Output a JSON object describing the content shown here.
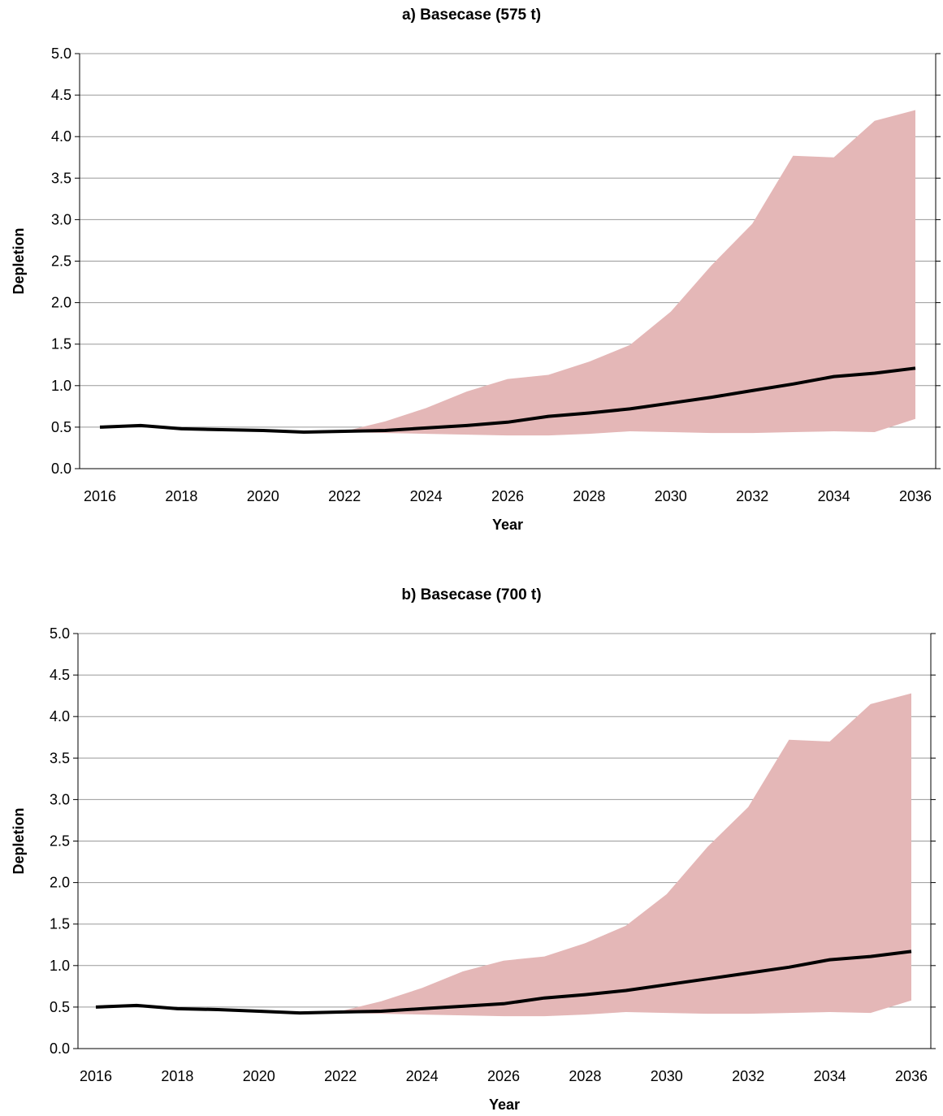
{
  "colors": {
    "band": "#e4b7b7",
    "median": "#000000",
    "grid": "#999999",
    "axis": "#000000"
  },
  "chart_data": [
    {
      "type": "area",
      "title": "a) Basecase (575 t)",
      "xlabel": "Year",
      "ylabel": "Depletion",
      "xlim": [
        2016,
        2036
      ],
      "ylim": [
        0,
        5.0
      ],
      "xticks": [
        2016,
        2018,
        2020,
        2022,
        2024,
        2026,
        2028,
        2030,
        2032,
        2034,
        2036
      ],
      "yticks": [
        "0.0",
        "0.5",
        "1.0",
        "1.5",
        "2.0",
        "2.5",
        "3.0",
        "3.5",
        "4.0",
        "4.5",
        "5.0"
      ],
      "grid": true,
      "legend": "none",
      "x": [
        2016,
        2017,
        2018,
        2019,
        2020,
        2021,
        2022,
        2023,
        2024,
        2025,
        2026,
        2027,
        2028,
        2029,
        2030,
        2031,
        2032,
        2033,
        2034,
        2035,
        2036
      ],
      "series": [
        {
          "role": "lower",
          "values": [
            0.5,
            0.51,
            0.48,
            0.46,
            0.45,
            0.44,
            0.44,
            0.43,
            0.42,
            0.41,
            0.4,
            0.4,
            0.42,
            0.45,
            0.44,
            0.43,
            0.43,
            0.44,
            0.45,
            0.44,
            0.6
          ]
        },
        {
          "role": "upper",
          "values": [
            0.5,
            0.51,
            0.48,
            0.46,
            0.45,
            0.44,
            0.45,
            0.57,
            0.73,
            0.93,
            1.08,
            1.13,
            1.29,
            1.49,
            1.89,
            2.45,
            2.95,
            3.77,
            3.75,
            4.19,
            4.32
          ]
        },
        {
          "role": "median",
          "values": [
            0.5,
            0.52,
            0.48,
            0.47,
            0.46,
            0.44,
            0.45,
            0.46,
            0.49,
            0.52,
            0.56,
            0.63,
            0.67,
            0.72,
            0.79,
            0.86,
            0.94,
            1.02,
            1.11,
            1.15,
            1.21
          ]
        }
      ]
    },
    {
      "type": "area",
      "title": "b) Basecase (700 t)",
      "xlabel": "Year",
      "ylabel": "Depletion",
      "xlim": [
        2016,
        2036
      ],
      "ylim": [
        0,
        5.0
      ],
      "xticks": [
        2016,
        2018,
        2020,
        2022,
        2024,
        2026,
        2028,
        2030,
        2032,
        2034,
        2036
      ],
      "yticks": [
        "0.0",
        "0.5",
        "1.0",
        "1.5",
        "2.0",
        "2.5",
        "3.0",
        "3.5",
        "4.0",
        "4.5",
        "5.0"
      ],
      "grid": true,
      "legend": "none",
      "x": [
        2016,
        2017,
        2018,
        2019,
        2020,
        2021,
        2022,
        2023,
        2024,
        2025,
        2026,
        2027,
        2028,
        2029,
        2030,
        2031,
        2032,
        2033,
        2034,
        2035,
        2036
      ],
      "series": [
        {
          "role": "lower",
          "values": [
            0.5,
            0.51,
            0.48,
            0.46,
            0.45,
            0.43,
            0.43,
            0.42,
            0.41,
            0.4,
            0.39,
            0.39,
            0.41,
            0.44,
            0.43,
            0.42,
            0.42,
            0.43,
            0.44,
            0.43,
            0.58
          ]
        },
        {
          "role": "upper",
          "values": [
            0.5,
            0.51,
            0.48,
            0.46,
            0.45,
            0.43,
            0.45,
            0.57,
            0.73,
            0.93,
            1.06,
            1.11,
            1.27,
            1.48,
            1.86,
            2.43,
            2.91,
            3.72,
            3.7,
            4.15,
            4.28
          ]
        },
        {
          "role": "median",
          "values": [
            0.5,
            0.52,
            0.48,
            0.47,
            0.45,
            0.43,
            0.44,
            0.45,
            0.48,
            0.51,
            0.54,
            0.61,
            0.65,
            0.7,
            0.77,
            0.84,
            0.91,
            0.98,
            1.07,
            1.11,
            1.17
          ]
        }
      ]
    }
  ]
}
